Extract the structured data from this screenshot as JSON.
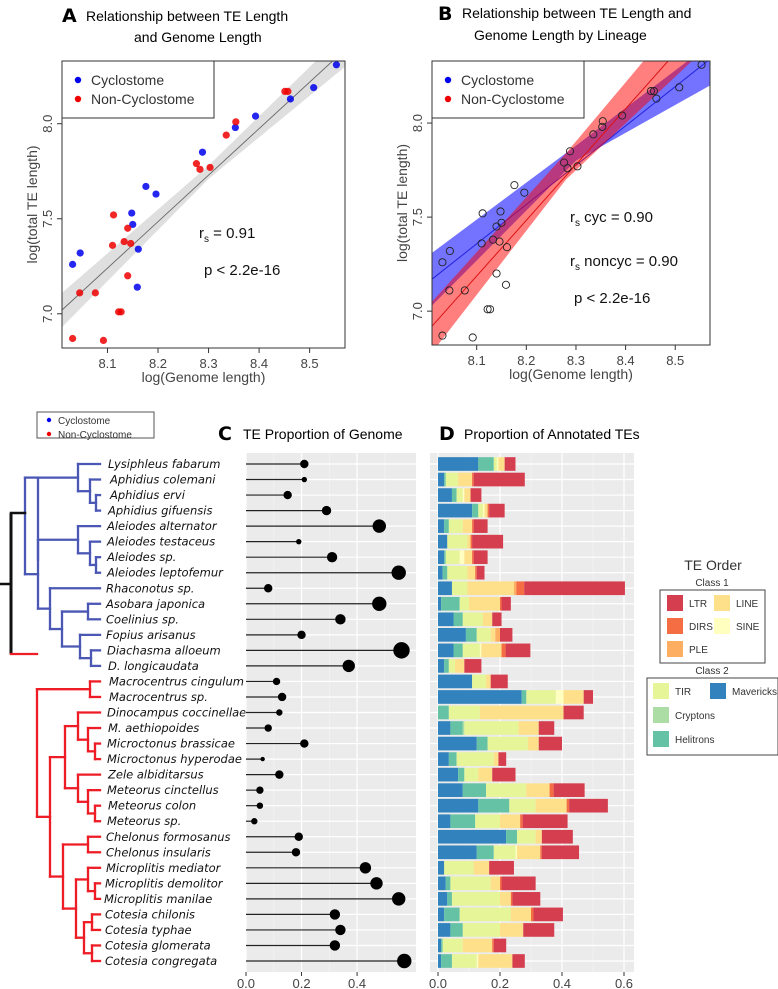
{
  "chart_data": [
    {
      "panel": "A",
      "type": "scatter",
      "title": "Relationship between TE Length and Genome Length",
      "title_lines": [
        "Relationship between TE Length",
        "and Genome Length"
      ],
      "xlabel": "log(Genome length)",
      "ylabel": "log(total TE length)",
      "xlim": [
        8.01,
        8.57
      ],
      "ylim": [
        6.82,
        8.33
      ],
      "xticks": [
        8.1,
        8.2,
        8.3,
        8.4,
        8.5
      ],
      "yticks": [
        7.0,
        7.5,
        8.0
      ],
      "grid": false,
      "legend": {
        "position": "top-left",
        "entries": [
          {
            "label": "Cyclostome",
            "color": "#0000ee"
          },
          {
            "label": "Non-Cyclostome",
            "color": "#ee0000"
          }
        ]
      },
      "annotations": {
        "r_label": "r",
        "r_sub": "s",
        "r_value": " = 0.91",
        "p_text": "p < 2.2e-16"
      },
      "regression": {
        "x": [
          8.01,
          8.57
        ],
        "y": [
          7.02,
          8.39
        ]
      },
      "series": [
        {
          "name": "Cyclostome",
          "color": "#0000ee",
          "points": [
            [
              8.553,
              8.31
            ],
            [
              8.508,
              8.19
            ],
            [
              8.462,
              8.13
            ],
            [
              8.393,
              8.04
            ],
            [
              8.353,
              7.98
            ],
            [
              8.288,
              7.85
            ],
            [
              8.196,
              7.63
            ],
            [
              8.176,
              7.67
            ],
            [
              8.148,
              7.53
            ],
            [
              8.15,
              7.47
            ],
            [
              8.161,
              7.34
            ],
            [
              8.159,
              7.14
            ],
            [
              8.046,
              7.32
            ],
            [
              8.031,
              7.26
            ]
          ]
        },
        {
          "name": "Non-Cyclostome",
          "color": "#ee0000",
          "points": [
            [
              8.457,
              8.17
            ],
            [
              8.451,
              8.17
            ],
            [
              8.354,
              8.01
            ],
            [
              8.335,
              7.94
            ],
            [
              8.276,
              7.79
            ],
            [
              8.283,
              7.76
            ],
            [
              8.303,
              7.77
            ],
            [
              8.112,
              7.52
            ],
            [
              8.14,
              7.45
            ],
            [
              8.133,
              7.38
            ],
            [
              8.146,
              7.37
            ],
            [
              8.11,
              7.36
            ],
            [
              8.14,
              7.2
            ],
            [
              8.045,
              7.11
            ],
            [
              8.076,
              7.11
            ],
            [
              8.122,
              7.01
            ],
            [
              8.127,
              7.01
            ],
            [
              8.031,
              6.87
            ],
            [
              8.092,
              6.86
            ]
          ]
        }
      ]
    },
    {
      "panel": "B",
      "type": "scatter",
      "title": "Relationship between TE Length and Genome Length by Lineage",
      "title_lines": [
        "Relationship between TE Length and",
        "Genome Length by Lineage"
      ],
      "xlabel": "log(Genome length)",
      "ylabel": "log(total TE length)",
      "xlim": [
        8.01,
        8.57
      ],
      "ylim": [
        6.82,
        8.33
      ],
      "xticks": [
        8.1,
        8.2,
        8.3,
        8.4,
        8.5
      ],
      "yticks": [
        7.0,
        7.5,
        8.0
      ],
      "grid": false,
      "legend": {
        "position": "top-left",
        "entries": [
          {
            "label": "Cyclostome",
            "color": "#0000ee"
          },
          {
            "label": "Non-Cyclostome",
            "color": "#ee0000"
          }
        ]
      },
      "annotations": {
        "r_label": "r",
        "r_sub": "s",
        "r_cyc": " cyc = 0.90",
        "r_noncyc": " noncyc = 0.90",
        "p_text": "p < 2.2e-16"
      },
      "fits": [
        {
          "name": "Cyclostome",
          "color": "#0000ff",
          "line": [
            [
              8.01,
              7.17
            ],
            [
              8.57,
              8.34
            ]
          ],
          "band_upper": [
            [
              8.01,
              7.31
            ],
            [
              8.3,
              7.88
            ],
            [
              8.57,
              8.42
            ]
          ],
          "band_lower": [
            [
              8.01,
              7.03
            ],
            [
              8.3,
              7.8
            ],
            [
              8.57,
              8.2
            ]
          ]
        },
        {
          "name": "Non-Cyclostome",
          "color": "#ff0000",
          "line": [
            [
              8.01,
              6.92
            ],
            [
              8.57,
              8.58
            ]
          ],
          "band_upper": [
            [
              8.01,
              7.05
            ],
            [
              8.28,
              7.84
            ],
            [
              8.57,
              8.75
            ]
          ],
          "band_lower": [
            [
              8.01,
              6.78
            ],
            [
              8.28,
              7.7
            ],
            [
              8.57,
              8.42
            ]
          ]
        }
      ],
      "points_style": "open-circle"
    },
    {
      "panel": "C",
      "type": "lollipop",
      "title": "TE Proportion of Genome",
      "xlim": [
        0,
        0.6
      ],
      "xticks": [
        0.0,
        0.2,
        0.4
      ],
      "xtick_labels": [
        "0.0",
        "0.2",
        "0.4"
      ],
      "grid": true,
      "categories": [
        "Lysiphleus fabarum",
        "Aphidius colemani",
        "Aphidius ervi",
        "Aphidius gifuensis",
        "Aleiodes alternator",
        "Aleiodes testaceus",
        "Aleiodes sp.",
        "Aleiodes leptofemur",
        "Rhaconotus sp.",
        "Asobara japonica",
        "Coelinius sp.",
        "Fopius arisanus",
        "Diachasma alloeum",
        "D. longicaudata",
        "Macrocentrus cingulum",
        "Macrocentrus sp.",
        "Dinocampus coccinellae",
        "M. aethiopoides",
        "Microctonus brassicae",
        "Microctonus hyperodae",
        "Zele albiditarsus",
        "Meteorus cinctellus",
        "Meteorus colon",
        "Meteorus sp.",
        "Chelonus formosanus",
        "Chelonus insularis",
        "Microplitis mediator",
        "Microplitis demolitor",
        "Microplitis manilae",
        "Cotesia chilonis",
        "Cotesia typhae",
        "Cotesia glomerata",
        "Cotesia congregata"
      ],
      "values": [
        0.21,
        0.21,
        0.15,
        0.29,
        0.48,
        0.19,
        0.31,
        0.55,
        0.08,
        0.48,
        0.34,
        0.2,
        0.56,
        0.37,
        0.11,
        0.13,
        0.12,
        0.08,
        0.21,
        0.06,
        0.12,
        0.05,
        0.05,
        0.03,
        0.19,
        0.18,
        0.43,
        0.47,
        0.55,
        0.32,
        0.34,
        0.32,
        0.57
      ],
      "marker_size": [
        3,
        1.5,
        3,
        3.5,
        5.5,
        1.5,
        4,
        6,
        3,
        6,
        4,
        3,
        7,
        5,
        2.5,
        3,
        2,
        2.5,
        3,
        1,
        3,
        2.5,
        2,
        2,
        3,
        3,
        4.5,
        5,
        5.5,
        4,
        4,
        4,
        6
      ]
    },
    {
      "panel": "D",
      "type": "bar",
      "stacked": true,
      "orientation": "horizontal",
      "title": "Proportion of Annotated TEs",
      "xlim": [
        0,
        0.62
      ],
      "xticks": [
        0.0,
        0.2,
        0.4,
        0.6
      ],
      "xtick_labels": [
        "0.0",
        "0.2",
        "0.4",
        "0.6"
      ],
      "grid": true,
      "categories": [
        "Lysiphleus fabarum",
        "Aphidius colemani",
        "Aphidius ervi",
        "Aphidius gifuensis",
        "Aleiodes alternator",
        "Aleiodes testaceus",
        "Aleiodes sp.",
        "Aleiodes leptofemur",
        "Rhaconotus sp.",
        "Asobara japonica",
        "Coelinius sp.",
        "Fopius arisanus",
        "Diachasma alloeum",
        "D. longicaudata",
        "Macrocentrus cingulum",
        "Macrocentrus sp.",
        "Dinocampus coccinellae",
        "M. aethiopoides",
        "Microctonus brassicae",
        "Microctonus hyperodae",
        "Zele albiditarsus",
        "Meteorus cinctellus",
        "Meteorus colon",
        "Meteorus sp.",
        "Chelonus formosanus",
        "Chelonus insularis",
        "Microplitis mediator",
        "Microplitis demolitor",
        "Microplitis manilae",
        "Cotesia chilonis",
        "Cotesia typhae",
        "Cotesia glomerata",
        "Cotesia congregata"
      ],
      "series": [
        {
          "name": "Mavericks",
          "color": "#3182bd",
          "values": [
            0.13,
            0.02,
            0.045,
            0.11,
            0.02,
            0.03,
            0.02,
            0.015,
            0.045,
            0.01,
            0.05,
            0.09,
            0.05,
            0.02,
            0.11,
            0.27,
            0.0,
            0.04,
            0.125,
            0.035,
            0.065,
            0.08,
            0.13,
            0.04,
            0.22,
            0.125,
            0.02,
            0.025,
            0.03,
            0.02,
            0.04,
            0.01,
            0.01
          ]
        },
        {
          "name": "Helitrons",
          "color": "#66c2a5",
          "values": [
            0.05,
            0.005,
            0.015,
            0.02,
            0.015,
            0.0,
            0.005,
            0.015,
            0.0,
            0.06,
            0.03,
            0.035,
            0.03,
            0.015,
            0.0,
            0.015,
            0.035,
            0.04,
            0.035,
            0.025,
            0.02,
            0.075,
            0.1,
            0.08,
            0.035,
            0.055,
            0.0,
            0.015,
            0.015,
            0.05,
            0.04,
            0.005,
            0.035
          ]
        },
        {
          "name": "Cryptons",
          "color": "#abdda4",
          "values": [
            0.0,
            0.0,
            0.0,
            0.0,
            0.0,
            0.0,
            0.0,
            0.0,
            0.0,
            0.0,
            0.0,
            0.0,
            0.0,
            0.0,
            0.0,
            0.0,
            0.0,
            0.005,
            0.0,
            0.0,
            0.0,
            0.0,
            0.0,
            0.0,
            0.0,
            0.0,
            0.0,
            0.0,
            0.0,
            0.0,
            0.0,
            0.0,
            0.0
          ]
        },
        {
          "name": "TIR",
          "color": "#e6f598",
          "values": [
            0.01,
            0.04,
            0.02,
            0.015,
            0.045,
            0.065,
            0.045,
            0.065,
            0.05,
            0.03,
            0.065,
            0.045,
            0.055,
            0.02,
            0.045,
            0.095,
            0.1,
            0.175,
            0.13,
            0.12,
            0.045,
            0.13,
            0.085,
            0.08,
            0.06,
            0.07,
            0.095,
            0.13,
            0.155,
            0.165,
            0.12,
            0.065,
            0.08
          ]
        },
        {
          "name": "SINE",
          "color": "#ffffbf",
          "values": [
            0.005,
            0.0,
            0.005,
            0.005,
            0.0,
            0.0,
            0.015,
            0.0,
            0.0,
            0.0,
            0.0,
            0.0,
            0.005,
            0.0,
            0.0,
            0.025,
            0.0,
            0.0,
            0.0,
            0.0,
            0.0,
            0.0,
            0.0,
            0.0,
            0.0,
            0.005,
            0.0,
            0.0,
            0.0,
            0.0,
            0.0,
            0.0,
            0.005
          ]
        },
        {
          "name": "LINE",
          "color": "#fee08b",
          "values": [
            0.02,
            0.045,
            0.02,
            0.01,
            0.03,
            0.01,
            0.025,
            0.025,
            0.15,
            0.1,
            0.03,
            0.015,
            0.065,
            0.03,
            0.015,
            0.065,
            0.27,
            0.065,
            0.035,
            0.015,
            0.045,
            0.075,
            0.1,
            0.065,
            0.02,
            0.075,
            0.05,
            0.03,
            0.035,
            0.065,
            0.075,
            0.095,
            0.11
          ]
        },
        {
          "name": "PLE",
          "color": "#fdae61",
          "values": [
            0.0,
            0.0,
            0.0,
            0.0,
            0.0,
            0.0,
            0.0,
            0.0,
            0.008,
            0.0,
            0.0,
            0.015,
            0.0,
            0.0,
            0.0,
            0.0,
            0.0,
            0.0,
            0.0,
            0.0,
            0.0,
            0.0,
            0.0,
            0.0,
            0.0,
            0.0,
            0.0,
            0.0,
            0.0,
            0.0,
            0.0,
            0.0,
            0.0
          ]
        },
        {
          "name": "DIRS",
          "color": "#f46d43",
          "values": [
            0.0,
            0.005,
            0.0,
            0.005,
            0.005,
            0.005,
            0.005,
            0.005,
            0.025,
            0.005,
            0.0,
            0.0,
            0.013,
            0.0,
            0.0,
            0.0,
            0.0,
            0.0,
            0.0,
            0.0,
            0.0,
            0.013,
            0.008,
            0.008,
            0.0,
            0.005,
            0.0,
            0.005,
            0.005,
            0.008,
            0.0,
            0.005,
            0.0
          ]
        },
        {
          "name": "LTR",
          "color": "#d53e4f",
          "values": [
            0.035,
            0.165,
            0.035,
            0.05,
            0.045,
            0.1,
            0.045,
            0.025,
            0.325,
            0.03,
            0.03,
            0.04,
            0.08,
            0.055,
            0.055,
            0.03,
            0.065,
            0.05,
            0.075,
            0.025,
            0.075,
            0.1,
            0.125,
            0.145,
            0.1,
            0.12,
            0.08,
            0.11,
            0.09,
            0.095,
            0.1,
            0.04,
            0.04
          ]
        }
      ],
      "legend": {
        "title": "TE Order",
        "groups": [
          {
            "title": "Class 1",
            "entries": [
              {
                "label": "LTR",
                "color": "#d53e4f"
              },
              {
                "label": "LINE",
                "color": "#fee08b"
              },
              {
                "label": "DIRS",
                "color": "#f46d43"
              },
              {
                "label": "SINE",
                "color": "#ffffbf"
              },
              {
                "label": "PLE",
                "color": "#fdae61"
              }
            ]
          },
          {
            "title": "Class 2",
            "entries": [
              {
                "label": "TIR",
                "color": "#e6f598"
              },
              {
                "label": "Mavericks",
                "color": "#3182bd"
              },
              {
                "label": "Cryptons",
                "color": "#abdda4"
              },
              {
                "label": "Helitrons",
                "color": "#66c2a5"
              }
            ]
          }
        ]
      }
    }
  ],
  "tree": {
    "legend": [
      {
        "label": "Cyclostome",
        "color": "#0000ee"
      },
      {
        "label": "Non-Cyclostome",
        "color": "#ee0000"
      }
    ],
    "colors": {
      "cyclostome": "#4a57b4",
      "noncyclostome": "#ee1c25",
      "root": "#111111"
    },
    "n_cyclostome": 14
  },
  "panels": {
    "A": {
      "letter": "A"
    },
    "B": {
      "letter": "B"
    },
    "C": {
      "letter": "C"
    },
    "D": {
      "letter": "D"
    }
  }
}
